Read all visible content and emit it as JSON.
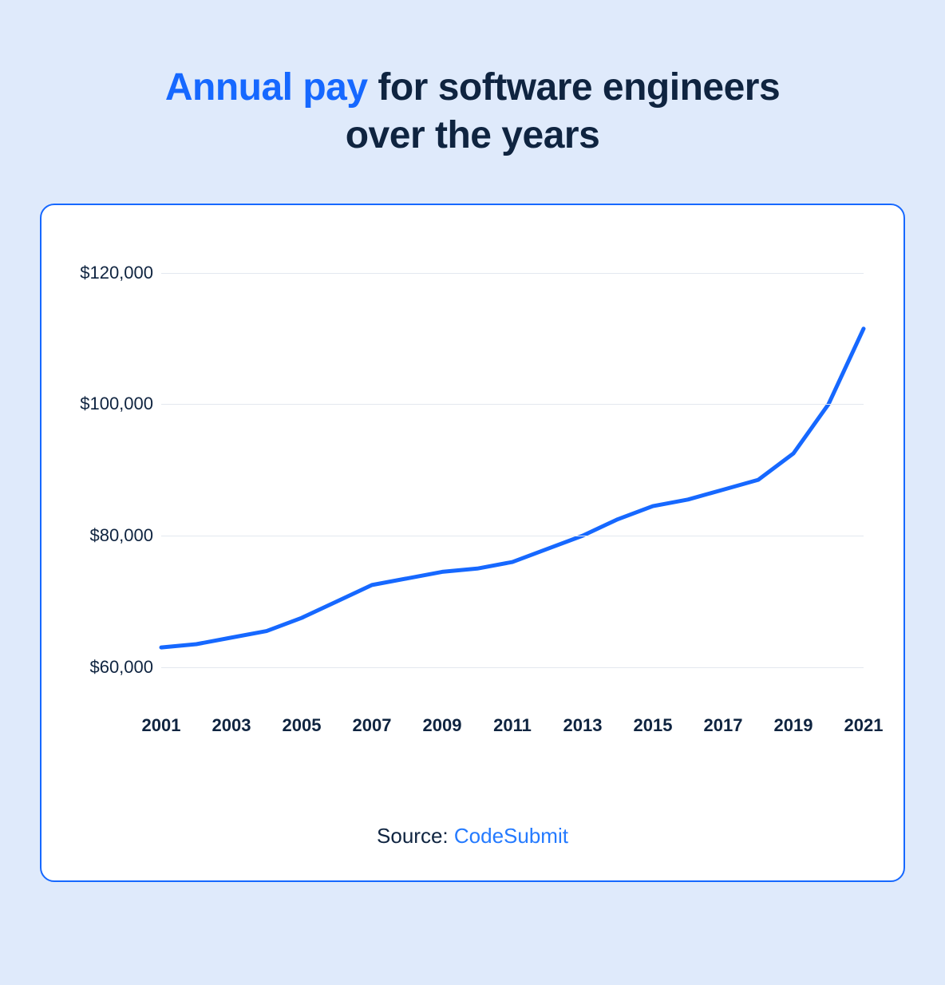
{
  "page": {
    "background_color": "#dfeafb"
  },
  "title": {
    "highlight_text": "Annual pay",
    "rest_text_line1": " for software engineers",
    "rest_text_line2": "over the years",
    "highlight_color": "#1668ff",
    "text_color": "#0f2440",
    "fontsize": 48,
    "fontweight": 800
  },
  "card": {
    "background_color": "#ffffff",
    "border_color": "#1668ff",
    "border_width": 2,
    "border_radius": 18
  },
  "chart": {
    "type": "line",
    "ylim": [
      55000,
      123000
    ],
    "yticks": [
      60000,
      80000,
      100000,
      120000
    ],
    "ytick_labels": [
      "$60,000",
      "$80,000",
      "$100,000",
      "$120,000"
    ],
    "xlim": [
      2001,
      2021
    ],
    "xticks": [
      2001,
      2003,
      2005,
      2007,
      2009,
      2011,
      2013,
      2015,
      2017,
      2019,
      2021
    ],
    "xtick_labels": [
      "2001",
      "2003",
      "2005",
      "2007",
      "2009",
      "2011",
      "2013",
      "2015",
      "2017",
      "2019",
      "2021"
    ],
    "grid_color": "#e3e8ef",
    "label_color": "#0f2440",
    "ylabel_fontsize": 22,
    "xlabel_fontsize": 22,
    "xlabel_fontweight": 700,
    "line_color": "#1668ff",
    "line_width": 5,
    "series": {
      "x": [
        2001,
        2002,
        2003,
        2004,
        2005,
        2006,
        2007,
        2008,
        2009,
        2010,
        2011,
        2012,
        2013,
        2014,
        2015,
        2016,
        2017,
        2018,
        2019,
        2020,
        2021
      ],
      "y": [
        63000,
        63500,
        64500,
        65500,
        67500,
        70000,
        72500,
        73500,
        74500,
        75000,
        76000,
        78000,
        80000,
        82500,
        84500,
        85500,
        87000,
        88500,
        92500,
        100000,
        111500
      ]
    }
  },
  "source": {
    "label": "Source: ",
    "link_text": "CodeSubmit",
    "label_color": "#0f2440",
    "link_color": "#247aff",
    "fontsize": 26
  }
}
